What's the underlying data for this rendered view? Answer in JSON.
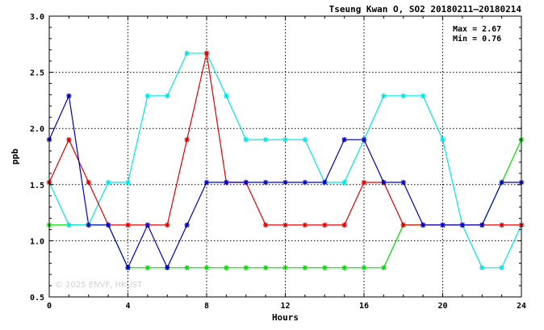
{
  "chart_data": {
    "type": "line",
    "title": "Tseung Kwan O, SO2 20180211–20180214",
    "xlabel": "Hours",
    "ylabel": "ppb",
    "xlim": [
      0,
      24
    ],
    "ylim": [
      0.5,
      3.0
    ],
    "xticks": [
      "0",
      "4",
      "8",
      "12",
      "16",
      "20",
      "24"
    ],
    "yticks": [
      "0.5",
      "1.0",
      "1.5",
      "2.0",
      "2.5",
      "3.0"
    ],
    "grid": true,
    "max_label": "Max = 2.67",
    "min_label": "Min = 0.76",
    "watermark": "© 2025  ENVF, HKUST",
    "x": [
      0,
      1,
      2,
      3,
      4,
      5,
      6,
      7,
      8,
      9,
      10,
      11,
      12,
      13,
      14,
      15,
      16,
      17,
      18,
      19,
      20,
      21,
      22,
      23,
      24
    ],
    "series": [
      {
        "color": "#00dd00",
        "marker": "asterisk",
        "values": [
          1.14,
          1.14,
          1.14,
          1.14,
          0.76,
          0.76,
          0.76,
          0.76,
          0.76,
          0.76,
          0.76,
          0.76,
          0.76,
          0.76,
          0.76,
          0.76,
          0.76,
          0.76,
          1.14,
          1.14,
          1.14,
          1.14,
          1.14,
          1.52,
          1.9
        ]
      },
      {
        "color": "#00e5e5",
        "marker": "asterisk",
        "values": [
          1.52,
          1.14,
          1.14,
          1.52,
          1.52,
          2.29,
          2.29,
          2.67,
          2.67,
          2.29,
          1.9,
          1.9,
          1.9,
          1.9,
          1.52,
          1.52,
          1.9,
          2.29,
          2.29,
          2.29,
          1.9,
          1.14,
          0.76,
          0.76,
          1.14
        ]
      },
      {
        "color": "#e00000",
        "marker": "asterisk",
        "values": [
          1.52,
          1.9,
          1.52,
          1.14,
          1.14,
          1.14,
          1.14,
          1.9,
          2.67,
          1.52,
          1.52,
          1.14,
          1.14,
          1.14,
          1.14,
          1.14,
          1.52,
          1.52,
          1.14,
          1.14,
          1.14,
          1.14,
          1.14,
          1.14,
          1.14
        ]
      },
      {
        "color": "#0000c8",
        "marker": "asterisk",
        "values": [
          1.9,
          2.29,
          1.14,
          1.14,
          0.76,
          1.14,
          0.76,
          1.14,
          1.52,
          1.52,
          1.52,
          1.52,
          1.52,
          1.52,
          1.52,
          1.9,
          1.9,
          1.52,
          1.52,
          1.14,
          1.14,
          1.14,
          1.14,
          1.52,
          1.52
        ]
      }
    ]
  }
}
